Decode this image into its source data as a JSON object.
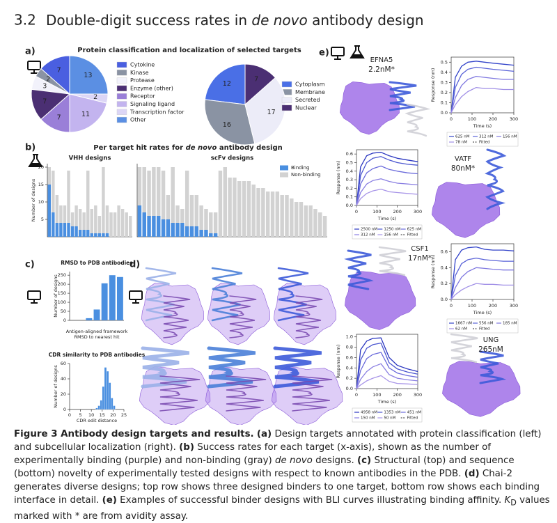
{
  "heading": {
    "number": "3.2",
    "title": [
      "Double-digit success rates in ",
      "de novo",
      " antibody design"
    ]
  },
  "panels": {
    "a": {
      "label": "a)",
      "title": "Protein classification and localization of selected targets"
    },
    "b": {
      "label": "b)",
      "title": [
        "Per target hit rates for ",
        "de novo",
        " antibody design"
      ]
    },
    "c": {
      "label": "c)"
    },
    "d": {
      "label": "d)"
    },
    "e": {
      "label": "e)",
      "targets": [
        {
          "name": "EFNA5",
          "kd": "2.2nM*"
        },
        {
          "name": "VATF",
          "kd": "80nM*"
        },
        {
          "name": "CSF1",
          "kd": "17nM*"
        },
        {
          "name": "UNG",
          "kd": "265nM"
        }
      ]
    }
  },
  "chart_data": [
    {
      "type": "pie",
      "categories": [
        "Cytokine",
        "Kinase",
        "Protease",
        "Enzyme (other)",
        "Receptor",
        "Signaling ligand",
        "Transcription factor",
        "Other"
      ],
      "values": [
        7,
        2,
        3,
        7,
        7,
        11,
        2,
        13
      ],
      "colors": [
        "#4a5fe0",
        "#8a93a3",
        "#f2f2fb",
        "#4b2f73",
        "#9a7fd8",
        "#c3b4ef",
        "#dcd6f6",
        "#5b8fe3"
      ]
    },
    {
      "type": "pie",
      "categories": [
        "Cytoplasm",
        "Membrane",
        "Secreted",
        "Nuclear"
      ],
      "values": [
        12,
        16,
        17,
        7
      ],
      "colors": [
        "#4a6fe6",
        "#8a93a3",
        "#ececf8",
        "#4b2f73"
      ]
    },
    {
      "type": "bar",
      "stacked": true,
      "title": "VHH designs",
      "ylabel": "Number of designs",
      "ylim": [
        0,
        21
      ],
      "yticks": [
        5,
        10,
        15,
        20
      ],
      "series": [
        {
          "color": "#4a8fe0",
          "values": [
            15,
            7,
            4,
            4,
            4,
            4,
            3,
            3,
            2,
            2,
            2,
            1,
            1,
            1,
            1,
            1,
            0,
            0,
            0,
            0,
            0,
            0
          ]
        },
        {
          "color": "#d2d2d2",
          "values": [
            5,
            12,
            8,
            5,
            5,
            15,
            4,
            6,
            6,
            5,
            17,
            7,
            8,
            5,
            19,
            8,
            7,
            7,
            9,
            8,
            7,
            6
          ]
        }
      ]
    },
    {
      "type": "bar",
      "stacked": true,
      "title": "scFv designs",
      "ylim": [
        0,
        21
      ],
      "legend": "upper right",
      "series": [
        {
          "name": "Binding",
          "color": "#4a8fe0",
          "values": [
            9,
            7,
            6,
            6,
            6,
            5,
            5,
            4,
            4,
            4,
            3,
            3,
            3,
            2,
            2,
            1,
            1,
            0,
            0,
            0,
            0,
            0,
            0,
            0,
            0,
            0,
            0,
            0,
            0,
            0,
            0,
            0,
            0,
            0,
            0,
            0,
            0,
            0,
            0,
            0
          ]
        },
        {
          "name": "Non-binding",
          "color": "#d2d2d2",
          "values": [
            11,
            13,
            13,
            14,
            14,
            14,
            7,
            16,
            5,
            4,
            16,
            9,
            9,
            7,
            6,
            6,
            6,
            19,
            20,
            17,
            17,
            16,
            16,
            16,
            15,
            14,
            14,
            13,
            13,
            13,
            12,
            12,
            11,
            10,
            10,
            9,
            9,
            8,
            7,
            6
          ]
        }
      ]
    },
    {
      "type": "bar",
      "title": "RMSD to PDB antibodies",
      "ylabel": "Number of designs",
      "xlabel": [
        "Antigen-aligned framework",
        "RMSD to nearest hit"
      ],
      "values": [
        0,
        0,
        12,
        60,
        205,
        250,
        240
      ],
      "color": "#4a8fe0",
      "ylim": [
        0,
        270
      ],
      "yticks": [
        0,
        50,
        100,
        150,
        200,
        250
      ]
    },
    {
      "type": "histogram",
      "title": "CDR similarity to PDB antibodies",
      "ylabel": "Number of designs",
      "xlabel": [
        "CDR edit distance"
      ],
      "bins": [
        12,
        13,
        14,
        15,
        16,
        17,
        18,
        19,
        20,
        21
      ],
      "values": [
        2,
        5,
        12,
        30,
        55,
        50,
        35,
        15,
        5
      ],
      "color": "#4a8fe0",
      "xlim": [
        0,
        25
      ],
      "xticks": [
        0,
        5,
        10,
        15,
        20,
        25
      ],
      "ylim": [
        0,
        60
      ],
      "yticks": [
        0,
        20,
        40,
        60
      ]
    },
    {
      "type": "line",
      "xlabel": [
        "Time (s)"
      ],
      "ylabel": "Response (nm)",
      "fitted_label": "Fitted",
      "x": [
        0,
        20,
        50,
        80,
        120,
        160,
        200,
        250,
        300
      ],
      "xlim": [
        0,
        300
      ],
      "xticks": [
        0,
        100,
        200,
        300
      ],
      "ylim": [
        0,
        0.55
      ],
      "yticks": [
        {
          "value": 0,
          "label": "0.0"
        },
        0.1,
        0.2,
        0.3,
        0.4,
        0.5
      ],
      "series": [
        {
          "name": "625 nM",
          "color": "#3142c9",
          "values": [
            0,
            0.35,
            0.46,
            0.5,
            0.51,
            0.5,
            0.49,
            0.48,
            0.47
          ]
        },
        {
          "name": "312 nM",
          "color": "#5a63d8",
          "values": [
            0,
            0.25,
            0.38,
            0.43,
            0.45,
            0.44,
            0.43,
            0.42,
            0.41
          ]
        },
        {
          "name": "156 nM",
          "color": "#7f78e0",
          "values": [
            0,
            0.15,
            0.27,
            0.33,
            0.36,
            0.35,
            0.34,
            0.33,
            0.33
          ]
        },
        {
          "name": "78 nM",
          "color": "#a08fe6",
          "values": [
            0,
            0.08,
            0.16,
            0.21,
            0.25,
            0.24,
            0.24,
            0.23,
            0.23
          ]
        }
      ]
    },
    {
      "type": "line",
      "xlabel": [
        "Time (s)"
      ],
      "ylabel": "Response (nm)",
      "fitted_label": "Fitted",
      "x": [
        0,
        20,
        50,
        80,
        120,
        160,
        200,
        250,
        300
      ],
      "xlim": [
        0,
        300
      ],
      "xticks": [
        0,
        100,
        200,
        300
      ],
      "ylim": [
        0,
        0.65
      ],
      "yticks": [
        {
          "value": 0,
          "label": "0.0"
        },
        0.1,
        0.2,
        0.3,
        0.4,
        0.5,
        0.6
      ],
      "series": [
        {
          "name": "2500 nM",
          "color": "#2a36c0",
          "values": [
            0,
            0.45,
            0.58,
            0.61,
            0.62,
            0.58,
            0.55,
            0.53,
            0.51
          ]
        },
        {
          "name": "1250 nM",
          "color": "#4a55d0",
          "values": [
            0,
            0.35,
            0.5,
            0.55,
            0.57,
            0.53,
            0.5,
            0.48,
            0.47
          ]
        },
        {
          "name": "625 nM",
          "color": "#6a6adb",
          "values": [
            0,
            0.25,
            0.38,
            0.43,
            0.46,
            0.42,
            0.4,
            0.38,
            0.37
          ]
        },
        {
          "name": "312 nM",
          "color": "#8a7fe2",
          "values": [
            0,
            0.15,
            0.25,
            0.29,
            0.31,
            0.28,
            0.26,
            0.25,
            0.24
          ]
        },
        {
          "name": "156 nM",
          "color": "#a895e8",
          "values": [
            0,
            0.08,
            0.14,
            0.17,
            0.19,
            0.16,
            0.15,
            0.14,
            0.13
          ]
        }
      ]
    },
    {
      "type": "line",
      "xlabel": [
        "Time (s)"
      ],
      "ylabel": "Response (nm)",
      "fitted_label": "Fitted",
      "x": [
        0,
        20,
        50,
        80,
        120,
        160,
        200,
        250,
        300
      ],
      "xlim": [
        0,
        300
      ],
      "xticks": [
        0,
        100,
        200,
        300
      ],
      "ylim": [
        0,
        0.7
      ],
      "yticks": [
        {
          "value": 0,
          "label": "0.0"
        },
        0.2,
        0.4,
        0.6
      ],
      "series": [
        {
          "name": "1667 nM",
          "color": "#3142c9",
          "values": [
            0,
            0.5,
            0.62,
            0.65,
            0.66,
            0.63,
            0.62,
            0.62,
            0.61
          ]
        },
        {
          "name": "556 nM",
          "color": "#5a63d8",
          "values": [
            0,
            0.3,
            0.45,
            0.5,
            0.52,
            0.5,
            0.49,
            0.48,
            0.48
          ]
        },
        {
          "name": "185 nM",
          "color": "#7f78e0",
          "values": [
            0,
            0.15,
            0.28,
            0.35,
            0.4,
            0.39,
            0.38,
            0.37,
            0.37
          ]
        },
        {
          "name": "62 nM",
          "color": "#a08fe6",
          "values": [
            0,
            0.06,
            0.12,
            0.16,
            0.2,
            0.19,
            0.19,
            0.18,
            0.18
          ]
        }
      ]
    },
    {
      "type": "line",
      "xlabel": [
        "Time (s)"
      ],
      "ylabel": "Response (nm)",
      "fitted_label": "Fitted",
      "x": [
        0,
        20,
        50,
        80,
        120,
        160,
        200,
        250,
        300
      ],
      "xlim": [
        0,
        300
      ],
      "xticks": [
        0,
        100,
        200,
        300
      ],
      "ylim": [
        0,
        1.05
      ],
      "yticks": [
        {
          "value": 0,
          "label": "0.0"
        },
        0.2,
        0.4,
        0.6,
        0.8,
        {
          "value": 1,
          "label": "1.0"
        }
      ],
      "series": [
        {
          "name": "4958 nM",
          "color": "#2a36c0",
          "values": [
            0,
            0.75,
            0.92,
            0.97,
            0.98,
            0.6,
            0.45,
            0.38,
            0.33
          ]
        },
        {
          "name": "1353 nM",
          "color": "#4a55d0",
          "values": [
            0,
            0.55,
            0.78,
            0.85,
            0.88,
            0.5,
            0.38,
            0.32,
            0.28
          ]
        },
        {
          "name": "451 nM",
          "color": "#6a6adb",
          "values": [
            0,
            0.35,
            0.58,
            0.66,
            0.7,
            0.4,
            0.3,
            0.25,
            0.22
          ]
        },
        {
          "name": "150 nM",
          "color": "#8a7fe2",
          "values": [
            0,
            0.18,
            0.33,
            0.42,
            0.48,
            0.27,
            0.2,
            0.17,
            0.15
          ]
        },
        {
          "name": "50 nM",
          "color": "#a895e8",
          "values": [
            0,
            0.07,
            0.15,
            0.2,
            0.25,
            0.14,
            0.1,
            0.09,
            0.08
          ]
        }
      ]
    }
  ],
  "caption": [
    {
      "text": "Figure 3  Antibody design targets and results.",
      "style": "b"
    },
    {
      "text": " "
    },
    {
      "text": "(a)",
      "style": "b"
    },
    {
      "text": " Design targets annotated with protein classification (left) and subcellular localization (right). "
    },
    {
      "text": "(b)",
      "style": "b"
    },
    {
      "text": " Success rates for each target (x-axis), shown as the number of experimentally binding (purple) and non-binding (gray) "
    },
    {
      "text": "de novo",
      "style": "i"
    },
    {
      "text": " designs. "
    },
    {
      "text": "(c)",
      "style": "b"
    },
    {
      "text": " Structural (top) and sequence (bottom) novelty of experimentally tested designs with respect to known antibodies in the PDB. "
    },
    {
      "text": "(d)",
      "style": "b"
    },
    {
      "text": " Chai-2 generates diverse designs; top row shows three designed binders to one target, bottom row shows each binding interface in detail. "
    },
    {
      "text": "(e)",
      "style": "b"
    },
    {
      "text": " Examples of successful binder designs with BLI curves illustrating binding affinity. "
    },
    {
      "text": "K",
      "style": "i"
    },
    {
      "text": "D",
      "style": "sub"
    },
    {
      "text": " values marked with * are from avidity assay."
    }
  ]
}
